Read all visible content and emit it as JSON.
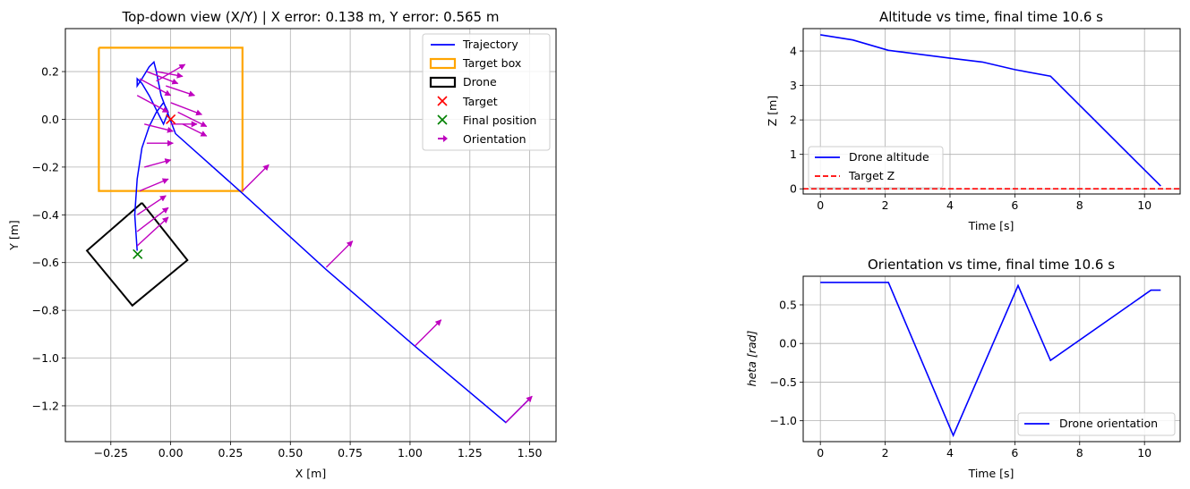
{
  "chart_data": [
    {
      "type": "scatter",
      "title": "Top-down view (X/Y) | X error: 0.138 m, Y error: 0.565 m",
      "xlabel": "X [m]",
      "ylabel": "Y [m]",
      "xlim": [
        -0.44,
        1.61
      ],
      "ylim": [
        -1.35,
        0.38
      ],
      "xticks": [
        -0.25,
        0.0,
        0.25,
        0.5,
        0.75,
        1.0,
        1.25,
        1.5
      ],
      "xtick_labels": [
        "−0.25",
        "0.00",
        "0.25",
        "0.50",
        "0.75",
        "1.00",
        "1.25",
        "1.50"
      ],
      "yticks": [
        0.2,
        0.0,
        -0.2,
        -0.4,
        -0.6,
        -0.8,
        -1.0,
        -1.2
      ],
      "ytick_labels": [
        "0.2",
        "0.0",
        "−0.2",
        "−0.4",
        "−0.6",
        "−0.8",
        "−1.0",
        "−1.2"
      ],
      "grid": true,
      "legend_position": "top-right",
      "legend": [
        "Trajectory",
        "Target box",
        "Drone",
        "Target",
        "Final position",
        "Orientation"
      ],
      "trajectory": {
        "color": "#0000ff",
        "x": [
          -0.14,
          -0.15,
          -0.14,
          -0.12,
          -0.09,
          -0.06,
          -0.03,
          -0.01,
          -0.03,
          -0.06,
          -0.09,
          -0.12,
          -0.14,
          -0.14,
          -0.12,
          -0.09,
          -0.07,
          -0.06,
          -0.04,
          0.02,
          0.3,
          0.65,
          1.02,
          1.4,
          1.5
        ],
        "y": [
          -0.55,
          -0.4,
          -0.25,
          -0.12,
          -0.03,
          0.03,
          0.07,
          0.03,
          -0.02,
          0.04,
          0.1,
          0.15,
          0.17,
          0.14,
          0.17,
          0.22,
          0.24,
          0.2,
          0.1,
          -0.06,
          -0.31,
          -0.63,
          -0.95,
          -1.27,
          -1.17
        ]
      },
      "target_box": {
        "color": "#ffa500",
        "x": [
          -0.3,
          0.3,
          0.3,
          -0.3,
          -0.3
        ],
        "y": [
          0.3,
          0.3,
          -0.3,
          -0.3,
          0.3
        ]
      },
      "drone": {
        "color": "#000000",
        "x": [
          -0.12,
          0.07,
          -0.16,
          -0.35,
          -0.12
        ],
        "y": [
          -0.35,
          -0.59,
          -0.78,
          -0.55,
          -0.35
        ]
      },
      "target": {
        "color": "#ff0000",
        "x": 0.0,
        "y": 0.0
      },
      "final_position": {
        "color": "#008000",
        "x": -0.138,
        "y": -0.565
      },
      "orientation": {
        "color": "#bf00bf",
        "x": [
          -0.14,
          -0.14,
          -0.14,
          -0.13,
          -0.11,
          -0.1,
          -0.11,
          -0.14,
          -0.13,
          -0.1,
          -0.06,
          -0.02,
          0.0,
          0.03,
          0.05,
          0.0,
          -0.06,
          0.3,
          0.65,
          1.02,
          1.4
        ],
        "y": [
          -0.53,
          -0.47,
          -0.4,
          -0.3,
          -0.2,
          -0.1,
          -0.02,
          0.1,
          0.17,
          0.2,
          0.2,
          0.14,
          0.07,
          0.03,
          -0.02,
          -0.02,
          0.16,
          -0.3,
          -0.62,
          -0.95,
          -1.27
        ],
        "u": [
          0.13,
          0.13,
          0.12,
          0.12,
          0.11,
          0.11,
          0.12,
          0.13,
          0.13,
          0.13,
          0.11,
          0.12,
          0.13,
          0.12,
          0.1,
          0.11,
          0.12,
          0.11,
          0.11,
          0.11,
          0.11
        ],
        "v": [
          0.12,
          0.1,
          0.08,
          0.05,
          0.03,
          0.0,
          -0.03,
          -0.07,
          -0.07,
          -0.05,
          -0.02,
          -0.04,
          -0.05,
          -0.06,
          -0.05,
          0.0,
          0.07,
          0.11,
          0.11,
          0.11,
          0.11
        ]
      }
    },
    {
      "type": "line",
      "title": "Altitude vs time, final time 10.6 s",
      "xlabel": "Time [s]",
      "ylabel": "Z [m]",
      "xlim": [
        -0.53,
        11.1
      ],
      "ylim": [
        -0.15,
        4.65
      ],
      "xticks": [
        0,
        2,
        4,
        6,
        8,
        10
      ],
      "xtick_labels": [
        "0",
        "2",
        "4",
        "6",
        "8",
        "10"
      ],
      "yticks": [
        0,
        1,
        2,
        3,
        4
      ],
      "ytick_labels": [
        "0",
        "1",
        "2",
        "3",
        "4"
      ],
      "grid": true,
      "legend_position": "lower-left",
      "series": [
        {
          "name": "Drone altitude",
          "color": "#0000ff",
          "style": "solid",
          "x": [
            0,
            1,
            2.1,
            4,
            5,
            6,
            7.1,
            10.5
          ],
          "y": [
            4.47,
            4.32,
            4.02,
            3.79,
            3.68,
            3.46,
            3.27,
            0.08
          ]
        },
        {
          "name": "Target Z",
          "color": "#ff0000",
          "style": "dashed",
          "x": [
            -0.53,
            11.1
          ],
          "y": [
            0,
            0
          ]
        }
      ]
    },
    {
      "type": "line",
      "title": "Orientation vs time, final time 10.6 s",
      "xlabel": "Time [s]",
      "ylabel": "heta [rad]",
      "xlim": [
        -0.53,
        11.1
      ],
      "ylim": [
        -1.27,
        0.87
      ],
      "xticks": [
        0,
        2,
        4,
        6,
        8,
        10
      ],
      "xtick_labels": [
        "0",
        "2",
        "4",
        "6",
        "8",
        "10"
      ],
      "yticks": [
        0.5,
        0.0,
        -0.5,
        -1.0
      ],
      "ytick_labels": [
        "0.5",
        "0.0",
        "−0.5",
        "−1.0"
      ],
      "grid": true,
      "legend_position": "lower-right",
      "series": [
        {
          "name": "Drone orientation",
          "color": "#0000ff",
          "style": "solid",
          "x": [
            0,
            1,
            2.1,
            4.1,
            6.1,
            7.1,
            10.2,
            10.5
          ],
          "y": [
            0.79,
            0.79,
            0.79,
            -1.19,
            0.75,
            -0.22,
            0.69,
            0.69
          ]
        }
      ]
    }
  ]
}
